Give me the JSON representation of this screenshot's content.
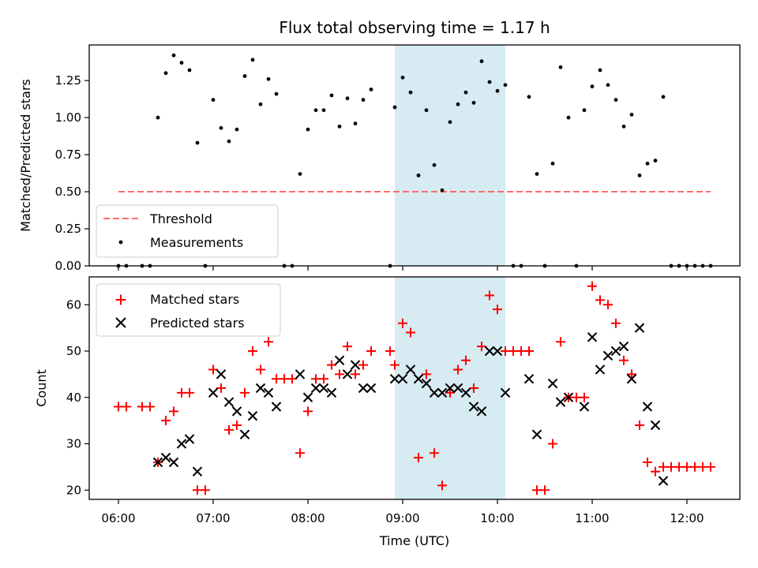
{
  "chart_data": [
    {
      "panel": "top",
      "type": "scatter",
      "title": "Flux total observing time = 1.17 h",
      "xlabel": "",
      "ylabel": "Matched/Predicted stars",
      "ylim": [
        0,
        1.49
      ],
      "yticks": [
        "0.00",
        "0.25",
        "0.50",
        "0.75",
        "1.00",
        "1.25"
      ],
      "grid": false,
      "shaded_interval": {
        "start": "08:55",
        "end": "10:05",
        "color": "#add8e6"
      },
      "threshold": {
        "name": "Threshold",
        "value": 0.5,
        "x_start": "06:00",
        "x_end": "12:15",
        "color": "#ff6b6b"
      },
      "legend": {
        "placement": "lower-left",
        "entries": [
          "Threshold",
          "Measurements"
        ]
      },
      "series": [
        {
          "name": "Measurements",
          "color": "#000000",
          "points": [
            [
              "06:00",
              0
            ],
            [
              "06:05",
              0
            ],
            [
              "06:15",
              0
            ],
            [
              "06:20",
              0
            ],
            [
              "06:25",
              1.0
            ],
            [
              "06:30",
              1.3
            ],
            [
              "06:35",
              1.42
            ],
            [
              "06:40",
              1.37
            ],
            [
              "06:45",
              1.32
            ],
            [
              "06:50",
              0.83
            ],
            [
              "06:55",
              0
            ],
            [
              "07:00",
              1.12
            ],
            [
              "07:05",
              0.93
            ],
            [
              "07:10",
              0.84
            ],
            [
              "07:15",
              0.92
            ],
            [
              "07:20",
              1.28
            ],
            [
              "07:25",
              1.39
            ],
            [
              "07:30",
              1.09
            ],
            [
              "07:35",
              1.26
            ],
            [
              "07:40",
              1.16
            ],
            [
              "07:45",
              0
            ],
            [
              "07:50",
              0
            ],
            [
              "07:55",
              0.62
            ],
            [
              "08:00",
              0.92
            ],
            [
              "08:05",
              1.05
            ],
            [
              "08:10",
              1.05
            ],
            [
              "08:15",
              1.15
            ],
            [
              "08:20",
              0.94
            ],
            [
              "08:25",
              1.13
            ],
            [
              "08:30",
              0.96
            ],
            [
              "08:35",
              1.12
            ],
            [
              "08:40",
              1.19
            ],
            [
              "08:52",
              0
            ],
            [
              "08:55",
              1.07
            ],
            [
              "09:00",
              1.27
            ],
            [
              "09:05",
              1.17
            ],
            [
              "09:10",
              0.61
            ],
            [
              "09:15",
              1.05
            ],
            [
              "09:20",
              0.68
            ],
            [
              "09:25",
              0.51
            ],
            [
              "09:30",
              0.97
            ],
            [
              "09:35",
              1.09
            ],
            [
              "09:40",
              1.17
            ],
            [
              "09:45",
              1.1
            ],
            [
              "09:50",
              1.38
            ],
            [
              "09:55",
              1.24
            ],
            [
              "10:00",
              1.18
            ],
            [
              "10:05",
              1.22
            ],
            [
              "10:10",
              0
            ],
            [
              "10:15",
              0
            ],
            [
              "10:20",
              1.14
            ],
            [
              "10:25",
              0.62
            ],
            [
              "10:30",
              0
            ],
            [
              "10:35",
              0.69
            ],
            [
              "10:40",
              1.34
            ],
            [
              "10:45",
              1.0
            ],
            [
              "10:50",
              0
            ],
            [
              "10:55",
              1.05
            ],
            [
              "11:00",
              1.21
            ],
            [
              "11:05",
              1.32
            ],
            [
              "11:10",
              1.22
            ],
            [
              "11:15",
              1.12
            ],
            [
              "11:20",
              0.94
            ],
            [
              "11:25",
              1.02
            ],
            [
              "11:30",
              0.61
            ],
            [
              "11:35",
              0.69
            ],
            [
              "11:40",
              0.71
            ],
            [
              "11:45",
              1.14
            ],
            [
              "11:50",
              0
            ],
            [
              "11:55",
              0
            ],
            [
              "12:00",
              0
            ],
            [
              "12:05",
              0
            ],
            [
              "12:10",
              0
            ],
            [
              "12:15",
              0
            ]
          ]
        }
      ]
    },
    {
      "panel": "bottom",
      "type": "scatter",
      "title": "",
      "xlabel": "Time (UTC)",
      "ylabel": "Count",
      "ylim": [
        18,
        66
      ],
      "yticks": [
        "20",
        "30",
        "40",
        "50",
        "60"
      ],
      "xticks": [
        "06:00",
        "07:00",
        "08:00",
        "09:00",
        "10:00",
        "11:00",
        "12:00"
      ],
      "grid": false,
      "shaded_interval": {
        "start": "08:55",
        "end": "10:05",
        "color": "#add8e6"
      },
      "legend": {
        "placement": "upper-left",
        "entries": [
          "Matched stars",
          "Predicted stars"
        ]
      },
      "series": [
        {
          "name": "Matched stars",
          "marker": "plus",
          "color": "#ff0000",
          "points": [
            [
              "06:00",
              38
            ],
            [
              "06:05",
              38
            ],
            [
              "06:15",
              38
            ],
            [
              "06:20",
              38
            ],
            [
              "06:25",
              26
            ],
            [
              "06:30",
              35
            ],
            [
              "06:35",
              37
            ],
            [
              "06:40",
              41
            ],
            [
              "06:45",
              41
            ],
            [
              "06:50",
              20
            ],
            [
              "06:55",
              20
            ],
            [
              "07:00",
              46
            ],
            [
              "07:05",
              42
            ],
            [
              "07:10",
              33
            ],
            [
              "07:15",
              34
            ],
            [
              "07:20",
              41
            ],
            [
              "07:25",
              50
            ],
            [
              "07:30",
              46
            ],
            [
              "07:35",
              52
            ],
            [
              "07:40",
              44
            ],
            [
              "07:45",
              44
            ],
            [
              "07:50",
              44
            ],
            [
              "07:55",
              28
            ],
            [
              "08:00",
              37
            ],
            [
              "08:05",
              44
            ],
            [
              "08:10",
              44
            ],
            [
              "08:15",
              47
            ],
            [
              "08:20",
              45
            ],
            [
              "08:25",
              51
            ],
            [
              "08:30",
              45
            ],
            [
              "08:35",
              47
            ],
            [
              "08:40",
              50
            ],
            [
              "08:52",
              50
            ],
            [
              "08:55",
              47
            ],
            [
              "09:00",
              56
            ],
            [
              "09:05",
              54
            ],
            [
              "09:10",
              27
            ],
            [
              "09:15",
              45
            ],
            [
              "09:20",
              28
            ],
            [
              "09:25",
              21
            ],
            [
              "09:30",
              41
            ],
            [
              "09:35",
              46
            ],
            [
              "09:40",
              48
            ],
            [
              "09:45",
              42
            ],
            [
              "09:50",
              51
            ],
            [
              "09:55",
              62
            ],
            [
              "10:00",
              59
            ],
            [
              "10:05",
              50
            ],
            [
              "10:10",
              50
            ],
            [
              "10:15",
              50
            ],
            [
              "10:20",
              50
            ],
            [
              "10:25",
              20
            ],
            [
              "10:30",
              20
            ],
            [
              "10:35",
              30
            ],
            [
              "10:40",
              52
            ],
            [
              "10:45",
              40
            ],
            [
              "10:50",
              40
            ],
            [
              "10:55",
              40
            ],
            [
              "11:00",
              64
            ],
            [
              "11:05",
              61
            ],
            [
              "11:10",
              60
            ],
            [
              "11:15",
              56
            ],
            [
              "11:20",
              48
            ],
            [
              "11:25",
              45
            ],
            [
              "11:30",
              34
            ],
            [
              "11:35",
              26
            ],
            [
              "11:40",
              24
            ],
            [
              "11:45",
              25
            ],
            [
              "11:50",
              25
            ],
            [
              "11:55",
              25
            ],
            [
              "12:00",
              25
            ],
            [
              "12:05",
              25
            ],
            [
              "12:10",
              25
            ],
            [
              "12:15",
              25
            ]
          ]
        },
        {
          "name": "Predicted stars",
          "marker": "x",
          "color": "#000000",
          "points": [
            [
              "06:25",
              26
            ],
            [
              "06:30",
              27
            ],
            [
              "06:35",
              26
            ],
            [
              "06:40",
              30
            ],
            [
              "06:45",
              31
            ],
            [
              "06:50",
              24
            ],
            [
              "07:00",
              41
            ],
            [
              "07:05",
              45
            ],
            [
              "07:10",
              39
            ],
            [
              "07:15",
              37
            ],
            [
              "07:20",
              32
            ],
            [
              "07:25",
              36
            ],
            [
              "07:30",
              42
            ],
            [
              "07:35",
              41
            ],
            [
              "07:40",
              38
            ],
            [
              "07:55",
              45
            ],
            [
              "08:00",
              40
            ],
            [
              "08:05",
              42
            ],
            [
              "08:10",
              42
            ],
            [
              "08:15",
              41
            ],
            [
              "08:20",
              48
            ],
            [
              "08:25",
              45
            ],
            [
              "08:30",
              47
            ],
            [
              "08:35",
              42
            ],
            [
              "08:40",
              42
            ],
            [
              "08:55",
              44
            ],
            [
              "09:00",
              44
            ],
            [
              "09:05",
              46
            ],
            [
              "09:10",
              44
            ],
            [
              "09:15",
              43
            ],
            [
              "09:20",
              41
            ],
            [
              "09:25",
              41
            ],
            [
              "09:30",
              42
            ],
            [
              "09:35",
              42
            ],
            [
              "09:40",
              41
            ],
            [
              "09:45",
              38
            ],
            [
              "09:50",
              37
            ],
            [
              "09:55",
              50
            ],
            [
              "10:00",
              50
            ],
            [
              "10:05",
              41
            ],
            [
              "10:20",
              44
            ],
            [
              "10:25",
              32
            ],
            [
              "10:35",
              43
            ],
            [
              "10:40",
              39
            ],
            [
              "10:45",
              40
            ],
            [
              "10:55",
              38
            ],
            [
              "11:00",
              53
            ],
            [
              "11:05",
              46
            ],
            [
              "11:10",
              49
            ],
            [
              "11:15",
              50
            ],
            [
              "11:20",
              51
            ],
            [
              "11:25",
              44
            ],
            [
              "11:30",
              55
            ],
            [
              "11:35",
              38
            ],
            [
              "11:40",
              34
            ],
            [
              "11:45",
              22
            ]
          ]
        }
      ]
    }
  ]
}
